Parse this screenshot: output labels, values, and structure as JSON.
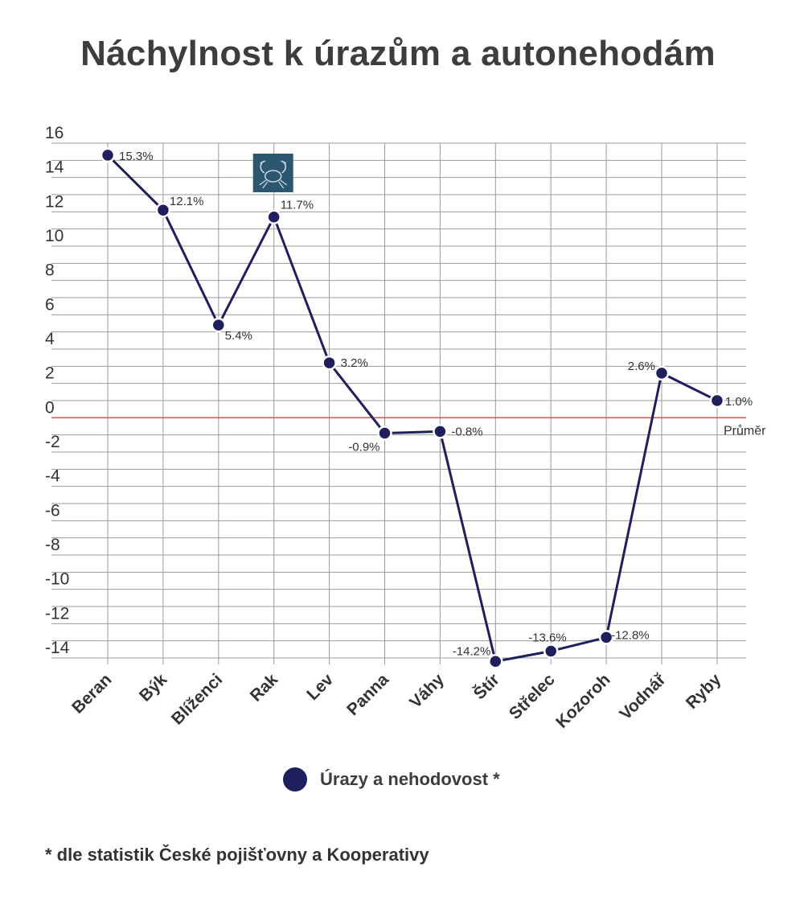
{
  "title": "Náchylnost k úrazům a autonehodám",
  "chart_data": {
    "type": "line",
    "title": "Náchylnost k úrazům a autonehodám",
    "categories": [
      "Beran",
      "Býk",
      "Blíženci",
      "Rak",
      "Lev",
      "Panna",
      "Váhy",
      "Štír",
      "Střelec",
      "Kozoroh",
      "Vodnář",
      "Ryby"
    ],
    "series": [
      {
        "name": "Úrazy a nehodovost *",
        "values": [
          15.3,
          12.1,
          5.4,
          11.7,
          3.2,
          -0.9,
          -0.8,
          -14.2,
          -13.6,
          -12.8,
          2.6,
          1.0
        ],
        "labels": [
          "15.3%",
          "12.1%",
          "5.4%",
          "11.7%",
          "3.2%",
          "-0.9%",
          "-0.8%",
          "-14.2%",
          "-13.6%",
          "-12.8%",
          "2.6%",
          "1.0%"
        ],
        "color": "#1f1f5e"
      }
    ],
    "ylim": [
      -14,
      16
    ],
    "yticks": [
      16,
      14,
      12,
      10,
      8,
      6,
      4,
      2,
      0,
      -2,
      -4,
      -6,
      -8,
      -10,
      -12,
      -14
    ],
    "grid": true,
    "reference_line": {
      "value": 0,
      "label": "Průměr",
      "color": "#e05555"
    },
    "annotation_icon": "crab-zodiac-icon",
    "legend": "bottom-center"
  },
  "legend": {
    "label": "Úrazy a nehodovost *"
  },
  "footnote": "* dle statistik České pojišťovny a Kooperativy"
}
